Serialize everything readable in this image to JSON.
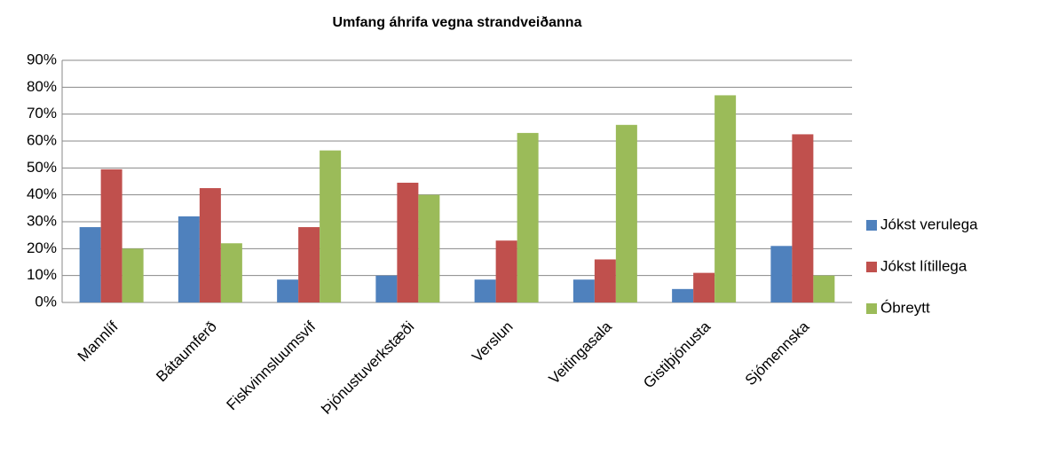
{
  "chart_data": {
    "type": "bar",
    "title": "Umfang áhrifa vegna strandveiðanna",
    "categories": [
      "Mannlíf",
      "Bátaumferð",
      "Fiskvinnsluumsvif",
      "Þjónustuverkstæði",
      "Verslun",
      "Veitingasala",
      "Gistiþjónusta",
      "Sjómennska"
    ],
    "series": [
      {
        "name": "Jókst verulega",
        "color": "#4f81bd",
        "values": [
          28,
          32,
          8.5,
          10,
          8.5,
          8.5,
          5,
          21
        ]
      },
      {
        "name": "Jókst lítillega",
        "color": "#c0504d",
        "values": [
          49.5,
          42.5,
          28,
          44.5,
          23,
          16,
          11,
          62.5
        ]
      },
      {
        "name": "Óbreytt",
        "color": "#9bbb59",
        "values": [
          20,
          22,
          56.5,
          40,
          63,
          66,
          77,
          10
        ]
      }
    ],
    "ylim": [
      0,
      90
    ],
    "yticks": [
      {
        "value": 0,
        "label": "0%"
      },
      {
        "value": 10,
        "label": "10%"
      },
      {
        "value": 20,
        "label": "20%"
      },
      {
        "value": 30,
        "label": "30%"
      },
      {
        "value": 40,
        "label": "40%"
      },
      {
        "value": 50,
        "label": "50%"
      },
      {
        "value": 60,
        "label": "60%"
      },
      {
        "value": 70,
        "label": "70%"
      },
      {
        "value": 80,
        "label": "80%"
      },
      {
        "value": 90,
        "label": "90%"
      }
    ],
    "grid": true,
    "legend": "right"
  }
}
